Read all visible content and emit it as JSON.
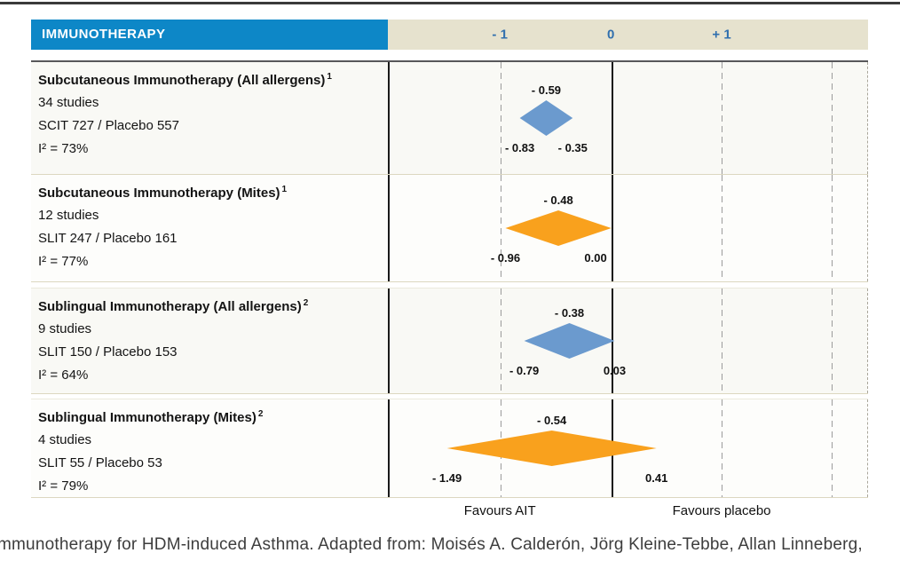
{
  "header": {
    "title": "IMMUNOTHERAPY"
  },
  "colors": {
    "header_blue": "#0d87c7",
    "header_beige": "#e6e2ce",
    "tick_blue": "#306fae",
    "diamond_blue": "#6b9ace",
    "diamond_orange": "#f9a11d"
  },
  "chart_data": {
    "type": "forest",
    "title": "IMMUNOTHERAPY",
    "axis": {
      "xlim": [
        -2.01,
        2.32
      ],
      "ticks": [
        -1,
        0,
        1
      ],
      "tick_labels": [
        "- 1",
        "0",
        "+ 1"
      ],
      "gridlines": [
        -1,
        1,
        2
      ]
    },
    "rows": [
      {
        "label": "Subcutaneous Immunotherapy (All allergens)",
        "footnote": "1",
        "studies": "34 studies",
        "arms": "SCIT 727 / Placebo 557",
        "heterogeneity": "I² = 73%",
        "estimate": -0.59,
        "ci_low": -0.83,
        "ci_high": -0.35,
        "estimate_label": "- 0.59",
        "ci_low_label": "- 0.83",
        "ci_high_label": "- 0.35",
        "color": "blue"
      },
      {
        "label": "Subcutaneous Immunotherapy (Mites)",
        "footnote": "1",
        "studies": "12 studies",
        "arms": "SLIT 247 / Placebo 161",
        "heterogeneity": "I² = 77%",
        "estimate": -0.48,
        "ci_low": -0.96,
        "ci_high": 0.0,
        "estimate_label": "- 0.48",
        "ci_low_label": "- 0.96",
        "ci_high_label": "0.00",
        "color": "orange"
      },
      {
        "label": "Sublingual Immunotherapy (All allergens)",
        "footnote": "2",
        "studies": "9 studies",
        "arms": "SLIT 150 / Placebo 153",
        "heterogeneity": "I² = 64%",
        "estimate": -0.38,
        "ci_low": -0.79,
        "ci_high": 0.03,
        "estimate_label": "- 0.38",
        "ci_low_label": "- 0.79",
        "ci_high_label": "0.03",
        "color": "blue"
      },
      {
        "label": "Sublingual Immunotherapy (Mites)",
        "footnote": "2",
        "studies": "4 studies",
        "arms": "SLIT 55 / Placebo 53",
        "heterogeneity": "I² = 79%",
        "estimate": -0.54,
        "ci_low": -1.49,
        "ci_high": 0.41,
        "estimate_label": "- 0.54",
        "ci_low_label": "- 1.49",
        "ci_high_label": "0.41",
        "color": "orange"
      }
    ],
    "footer": {
      "favours_left": "Favours AIT",
      "favours_right": "Favours placebo"
    }
  },
  "caption": "mmunotherapy for HDM-induced Asthma. Adapted from: Moisés A. Calderón, Jörg Kleine-Tebbe, Allan Linneberg,"
}
